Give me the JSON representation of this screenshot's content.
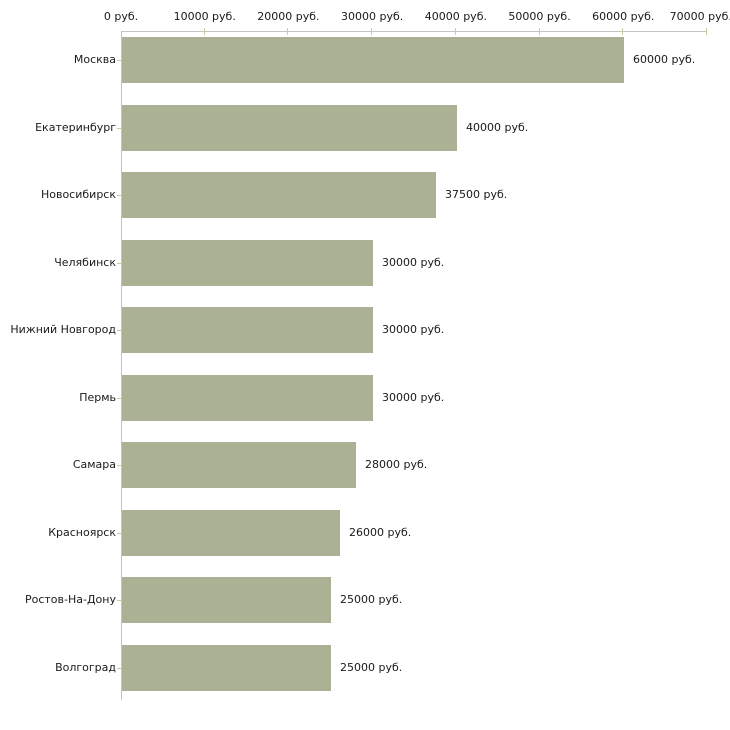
{
  "chart_data": {
    "type": "bar",
    "orientation": "horizontal",
    "title": "",
    "xlabel": "",
    "ylabel": "",
    "categories": [
      "Москва",
      "Екатеринбург",
      "Новосибирск",
      "Челябинск",
      "Нижний Новгород",
      "Пермь",
      "Самара",
      "Красноярск",
      "Ростов-На-Дону",
      "Волгоград"
    ],
    "values": [
      60000,
      40000,
      37500,
      30000,
      30000,
      30000,
      28000,
      26000,
      25000,
      25000
    ],
    "value_labels": [
      "60000 руб.",
      "40000 руб.",
      "37500 руб.",
      "30000 руб.",
      "30000 руб.",
      "30000 руб.",
      "28000 руб.",
      "26000 руб.",
      "25000 руб.",
      "25000 руб."
    ],
    "x_ticks": [
      0,
      10000,
      20000,
      30000,
      40000,
      50000,
      60000,
      70000
    ],
    "x_tick_labels": [
      "0 руб.",
      "10000 руб.",
      "20000 руб.",
      "30000 руб.",
      "40000 руб.",
      "50000 руб.",
      "60000 руб.",
      "70000 руб."
    ],
    "xlim": [
      0,
      70000
    ],
    "grid": false,
    "legend": null,
    "colors": {
      "bar": "#abb194",
      "axis": "#c4c4c0",
      "tick": "#c8cc9c",
      "text": "#1a1a1a",
      "background": "#ffffff"
    }
  }
}
